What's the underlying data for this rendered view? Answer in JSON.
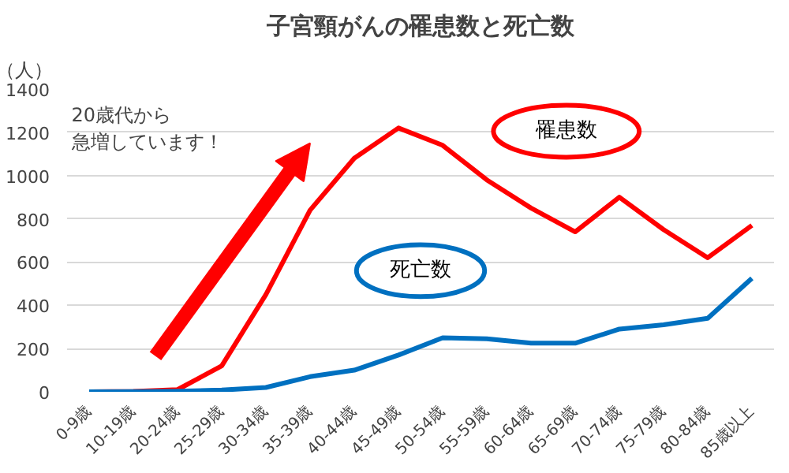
{
  "chart_data": {
    "type": "line",
    "title": "子宮頸がんの罹患数と死亡数",
    "ylabel": "（人）",
    "categories": [
      "0-9歳",
      "10-19歳",
      "20-24歳",
      "25-29歳",
      "30-34歳",
      "35-39歳",
      "40-44歳",
      "45-49歳",
      "50-54歳",
      "55-59歳",
      "60-64歳",
      "65-69歳",
      "70-74歳",
      "75-79歳",
      "80-84歳",
      "85歳以上"
    ],
    "series": [
      {
        "name": "罹患数",
        "color": "#ff0000",
        "values": [
          0,
          2,
          10,
          120,
          450,
          840,
          1080,
          1220,
          1140,
          980,
          850,
          740,
          900,
          750,
          620,
          770
        ]
      },
      {
        "name": "死亡数",
        "color": "#0070c0",
        "values": [
          0,
          1,
          3,
          8,
          20,
          70,
          100,
          170,
          250,
          245,
          225,
          225,
          290,
          310,
          340,
          525
        ]
      }
    ],
    "ylim": [
      0,
      1400
    ],
    "yticks": [
      0,
      200,
      400,
      600,
      800,
      1000,
      1200,
      1400
    ],
    "grid": "y",
    "marker": "none",
    "line_style": "solid",
    "annotations": [
      "20歳代から",
      "急増しています！"
    ]
  }
}
